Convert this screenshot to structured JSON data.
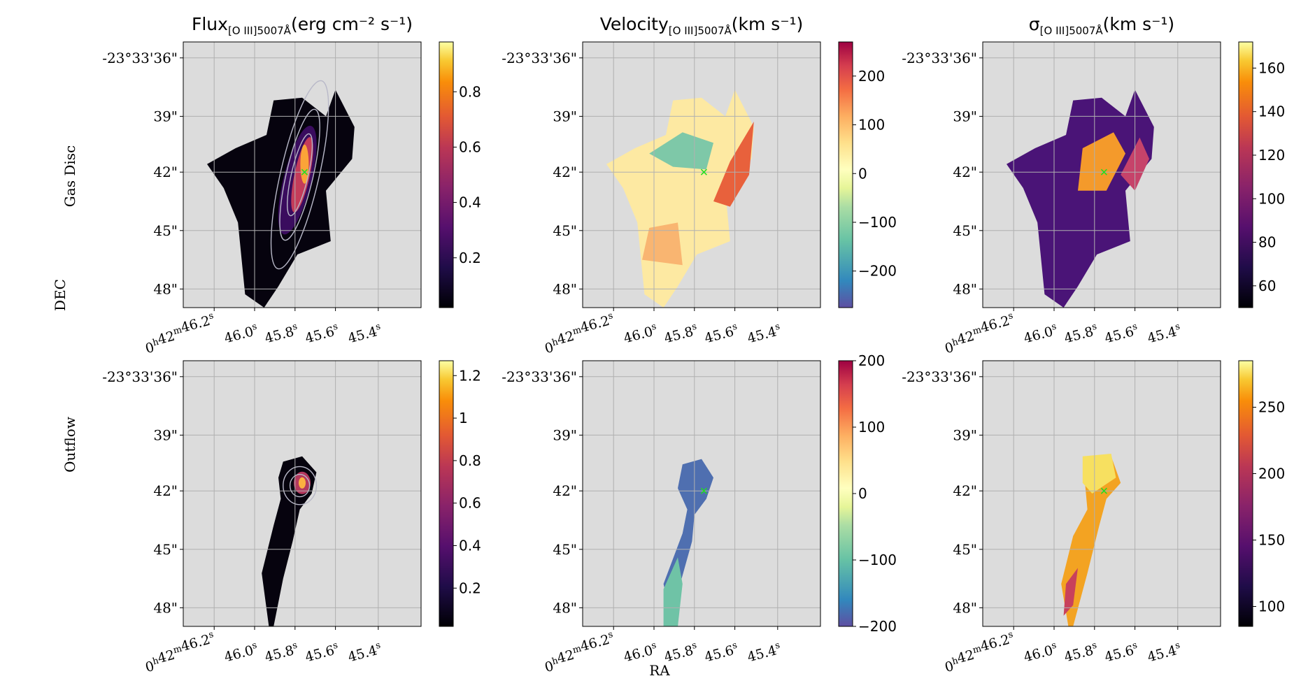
{
  "figure": {
    "row_labels": [
      "Gas Disc",
      "Outflow"
    ],
    "xlabel": "RA",
    "ylabel": "DEC"
  },
  "chart_data": [
    {
      "type": "heatmap",
      "row": "Gas Disc",
      "column": 0,
      "title_main": "Flux",
      "title_sub": "[O III]5007Å",
      "title_unit": "(erg cm⁻² s⁻¹)",
      "x_ticks": [
        "0h42m46.2s",
        "46.0s",
        "45.8s",
        "45.6s",
        "45.4s"
      ],
      "y_ticks": [
        "-23°33'36\"",
        "39\"",
        "42\"",
        "45\"",
        "48\""
      ],
      "colormap": "inferno",
      "colorbar_ticks": [
        0.2,
        0.4,
        0.6,
        0.8
      ],
      "colorbar_range": [
        0.02,
        0.98
      ],
      "contours": true,
      "background": "#dcdcdc"
    },
    {
      "type": "heatmap",
      "row": "Gas Disc",
      "column": 1,
      "title_main": "Velocity",
      "title_sub": "[O III]5007Å",
      "title_unit": "(km s⁻¹)",
      "x_ticks": [
        "0h42m46.2s",
        "46.0s",
        "45.8s",
        "45.6s",
        "45.4s"
      ],
      "y_ticks": [
        "-23°33'36\"",
        "39\"",
        "42\"",
        "45\"",
        "48\""
      ],
      "colormap": "Spectral_r",
      "colorbar_ticks": [
        200,
        100,
        0,
        -100,
        -200
      ],
      "colorbar_range": [
        -275,
        270
      ],
      "marker": "x",
      "background": "#dcdcdc"
    },
    {
      "type": "heatmap",
      "row": "Gas Disc",
      "column": 2,
      "title_main": "σ",
      "title_sub": "[O III]5007Å",
      "title_unit": "(km s⁻¹)",
      "x_ticks": [
        "0h42m46.2s",
        "46.0s",
        "45.8s",
        "45.6s",
        "45.4s"
      ],
      "y_ticks": [
        "-23°33'36\"",
        "39\"",
        "42\"",
        "45\"",
        "48\""
      ],
      "colormap": "inferno",
      "colorbar_ticks": [
        160,
        140,
        120,
        100,
        80,
        60
      ],
      "colorbar_range": [
        50,
        172
      ],
      "marker": "x",
      "background": "#dcdcdc"
    },
    {
      "type": "heatmap",
      "row": "Outflow",
      "column": 0,
      "title_main": "",
      "title_sub": "",
      "title_unit": "",
      "x_ticks": [
        "0h42m46.2s",
        "46.0s",
        "45.8s",
        "45.6s",
        "45.4s"
      ],
      "y_ticks": [
        "-23°33'36\"",
        "39\"",
        "42\"",
        "45\"",
        "48\""
      ],
      "colormap": "inferno",
      "colorbar_ticks": [
        1.2,
        1.0,
        0.8,
        0.6,
        0.4,
        0.2
      ],
      "colorbar_range": [
        0.02,
        1.27
      ],
      "contours": true,
      "background": "#dcdcdc"
    },
    {
      "type": "heatmap",
      "row": "Outflow",
      "column": 1,
      "title_main": "",
      "title_sub": "",
      "title_unit": "",
      "x_ticks": [
        "0h42m46.2s",
        "46.0s",
        "45.8s",
        "45.6s",
        "45.4s"
      ],
      "y_ticks": [
        "-23°33'36\"",
        "39\"",
        "42\"",
        "45\"",
        "48\""
      ],
      "colormap": "Spectral_r",
      "colorbar_ticks": [
        200,
        100,
        0,
        -100,
        -200
      ],
      "colorbar_range": [
        -200,
        200
      ],
      "marker": "x",
      "background": "#dcdcdc"
    },
    {
      "type": "heatmap",
      "row": "Outflow",
      "column": 2,
      "title_main": "",
      "title_sub": "",
      "title_unit": "",
      "x_ticks": [
        "0h42m46.2s",
        "46.0s",
        "45.8s",
        "45.6s",
        "45.4s"
      ],
      "y_ticks": [
        "-23°33'36\"",
        "39\"",
        "42\"",
        "45\"",
        "48\""
      ],
      "colormap": "inferno",
      "colorbar_ticks": [
        250,
        200,
        150,
        100
      ],
      "colorbar_range": [
        85,
        285
      ],
      "marker": "x",
      "background": "#dcdcdc"
    }
  ]
}
